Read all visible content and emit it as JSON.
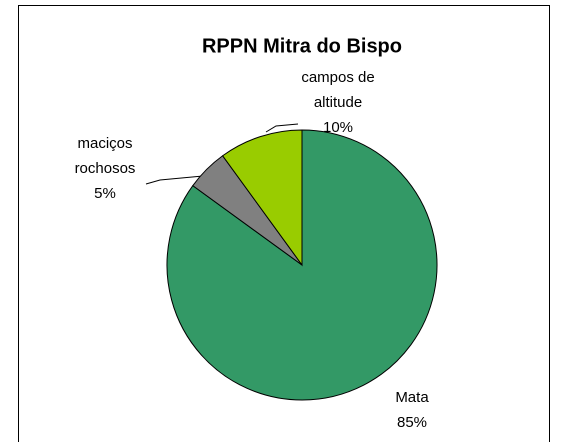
{
  "chart_data": {
    "type": "pie",
    "title": "RPPN Mitra do Bispo",
    "categories": [
      "Mata",
      "maciços rochosos",
      "campos de altitude"
    ],
    "values": [
      85,
      5,
      10
    ],
    "value_labels": [
      "85%",
      "5%",
      "10%"
    ],
    "colors": [
      "#339966",
      "#808080",
      "#99cc00"
    ]
  }
}
